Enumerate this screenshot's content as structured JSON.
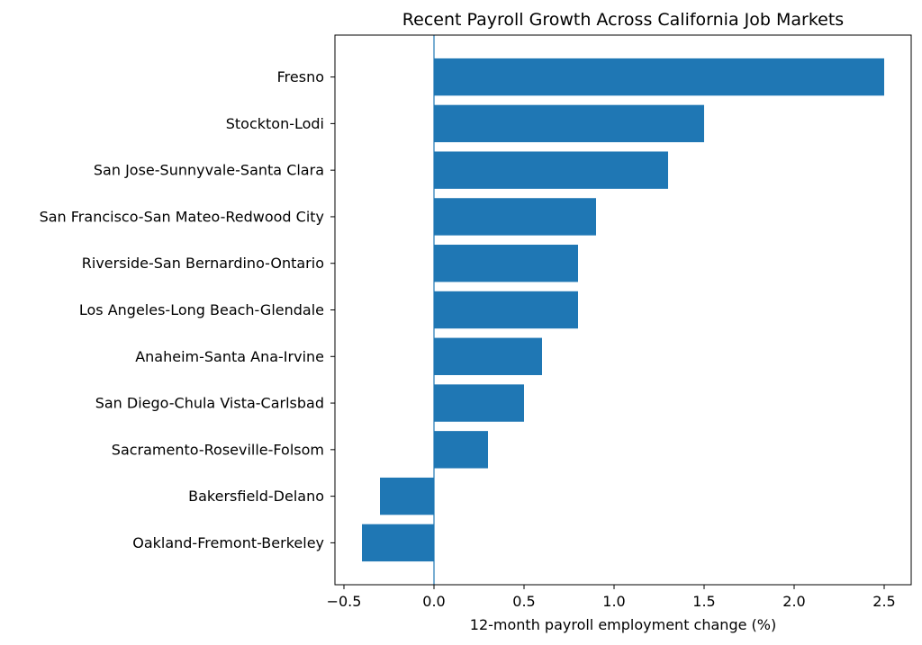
{
  "chart_data": {
    "type": "bar",
    "orientation": "horizontal",
    "title": "Recent Payroll Growth Across California Job Markets",
    "xlabel": "12-month payroll employment change (%)",
    "ylabel": "",
    "xlim": [
      -0.55,
      2.65
    ],
    "xticks": [
      "−0.5",
      "0.0",
      "0.5",
      "1.0",
      "1.5",
      "2.0",
      "2.5"
    ],
    "xtick_values": [
      -0.5,
      0.0,
      0.5,
      1.0,
      1.5,
      2.0,
      2.5
    ],
    "grid": false,
    "zero_line": true,
    "bar_color": "#1f77b4",
    "categories": [
      "Fresno",
      "Stockton-Lodi",
      "San Jose-Sunnyvale-Santa Clara",
      "San Francisco-San Mateo-Redwood City",
      "Riverside-San Bernardino-Ontario",
      "Los Angeles-Long Beach-Glendale",
      "Anaheim-Santa Ana-Irvine",
      "San Diego-Chula Vista-Carlsbad",
      "Sacramento-Roseville-Folsom",
      "Bakersfield-Delano",
      "Oakland-Fremont-Berkeley"
    ],
    "values": [
      2.5,
      1.5,
      1.3,
      0.9,
      0.8,
      0.8,
      0.6,
      0.5,
      0.3,
      -0.3,
      -0.4
    ]
  }
}
